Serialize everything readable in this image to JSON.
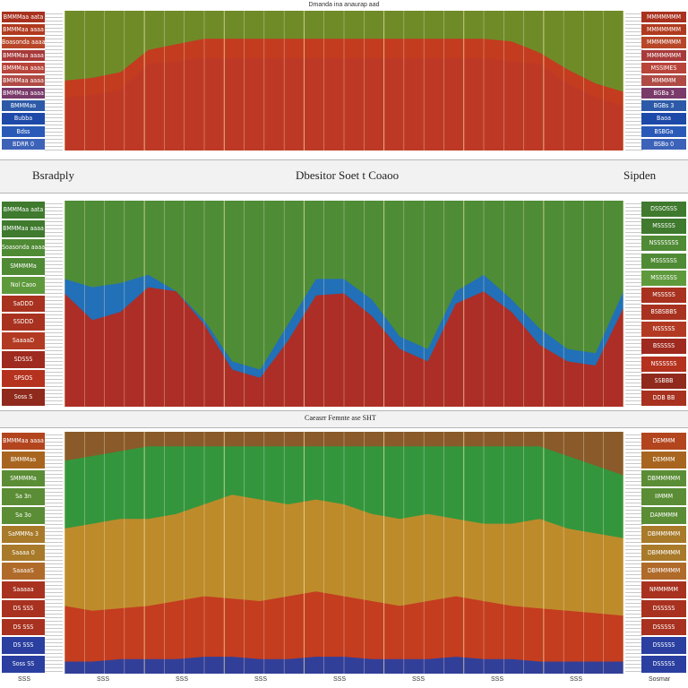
{
  "header": {
    "top_caption": "Dmanda ina anaurap aad"
  },
  "separator1": {
    "left": "Bsradply",
    "center": "Dbesitor Soet t Coaoo",
    "right": "Sipden"
  },
  "separator2": {
    "center": "Caeasrr Femnte ase  SHT"
  },
  "panels": [
    {
      "name": "panel-top",
      "left_labels": [
        "BMMMaa aata",
        "BMMMaa aaaa",
        "Boasonda aaaa",
        "BMMMaa aaaa",
        "BMMMaa aaaa",
        "BMMMaa aaaa",
        "BMMMaa aaaa",
        "BMMMaa",
        "Bubba",
        "Bdss",
        "BDRR 0"
      ],
      "right_labels": [
        "MMMMMMM",
        "MMMMMMM",
        "MMMMMMM",
        "MMMMMMM",
        "MSSIMES",
        "MMMMM",
        "BGBa 3",
        "BGBs 3",
        "Baoa",
        "BSBGa",
        "BSBo 0"
      ]
    },
    {
      "name": "panel-middle",
      "left_labels": [
        "BMMMaa aata",
        "BMMMaa aaaa",
        "Soasonda aaaa",
        "SMMMMa",
        "Nol Caoo",
        "SaDDD",
        "SSDDD",
        "SaaaaD",
        "SDSSS",
        "SPSOS",
        "Soss S"
      ],
      "right_labels": [
        "DSSOSSS",
        "MSSSSS",
        "NSSSSSSS",
        "MSSSSSS",
        "MSSSSSS",
        "MSSSSS",
        "BSBSBBS",
        "NSSSSS",
        "BSSSSS",
        "NSSSSSS",
        "SSBBB",
        "DDB BB"
      ]
    },
    {
      "name": "panel-bottom",
      "left_labels": [
        "BMMMaa aaaa",
        "BMMMaa",
        "SMMMMa",
        "Sa 3n",
        "Sa 3o",
        "SaMMMa 3",
        "Saaaa 0",
        "SaaaaS",
        "Saaaaa",
        "DS SSS",
        "DS SSS",
        "DS SSS",
        "Soss SS"
      ],
      "right_labels": [
        "DEMMM",
        "DEMMM",
        "DBMMMMM",
        "IIMMM",
        "DAMMMM",
        "DBMMMMM",
        "DBMMMMM",
        "DBMMMMM",
        "NMMMMM",
        "DSSSSS",
        "DSSSSS",
        "DSSSSS",
        "DSSSSS"
      ]
    }
  ],
  "bottom_ticks": [
    "SSS",
    "SSS",
    "SSS",
    "SSS",
    "SSS",
    "SSS",
    "SSS",
    "SSS",
    "Sosmar"
  ],
  "chart_data": [
    {
      "type": "area",
      "title": "Dmanda ina anaurap aad",
      "series": [
        {
          "color": "#1d49a8",
          "values": [
            0.38,
            0.4,
            0.43,
            0.62,
            0.64,
            0.66,
            0.66,
            0.66,
            0.66,
            0.66,
            0.66,
            0.66,
            0.66,
            0.66,
            0.66,
            0.66,
            0.64,
            0.62,
            0.48,
            0.38,
            0.32
          ]
        },
        {
          "color": "#c7381f",
          "values": [
            0.5,
            0.52,
            0.56,
            0.72,
            0.76,
            0.8,
            0.8,
            0.8,
            0.8,
            0.8,
            0.8,
            0.8,
            0.8,
            0.8,
            0.8,
            0.8,
            0.78,
            0.7,
            0.58,
            0.48,
            0.42
          ]
        }
      ],
      "background": "#6f8b28"
    },
    {
      "type": "area",
      "title": "Dbesitor Soet t Coaoo",
      "series": [
        {
          "color": "#1f6fc0",
          "values": [
            0.62,
            0.58,
            0.6,
            0.64,
            0.56,
            0.42,
            0.22,
            0.18,
            0.4,
            0.62,
            0.62,
            0.52,
            0.34,
            0.28,
            0.56,
            0.64,
            0.52,
            0.38,
            0.28,
            0.26,
            0.56
          ]
        },
        {
          "color": "#b42a1e",
          "values": [
            0.55,
            0.42,
            0.46,
            0.58,
            0.56,
            0.4,
            0.18,
            0.14,
            0.32,
            0.54,
            0.55,
            0.44,
            0.28,
            0.22,
            0.5,
            0.56,
            0.46,
            0.3,
            0.22,
            0.2,
            0.48
          ]
        }
      ],
      "background": "#4f8c36"
    },
    {
      "type": "area",
      "title": "Caeasrr Femnte ase  SHT",
      "series": [
        {
          "color": "#2e9a3e",
          "values": [
            0.88,
            0.9,
            0.92,
            0.94,
            0.94,
            0.94,
            0.94,
            0.94,
            0.94,
            0.94,
            0.94,
            0.94,
            0.94,
            0.94,
            0.94,
            0.94,
            0.94,
            0.94,
            0.9,
            0.86,
            0.82
          ]
        },
        {
          "color": "#c68a2a",
          "values": [
            0.6,
            0.62,
            0.64,
            0.64,
            0.66,
            0.7,
            0.74,
            0.72,
            0.7,
            0.72,
            0.7,
            0.66,
            0.64,
            0.66,
            0.64,
            0.62,
            0.62,
            0.64,
            0.6,
            0.58,
            0.56
          ]
        },
        {
          "color": "#c4391f",
          "values": [
            0.28,
            0.26,
            0.27,
            0.28,
            0.3,
            0.32,
            0.31,
            0.3,
            0.32,
            0.34,
            0.32,
            0.3,
            0.28,
            0.3,
            0.32,
            0.3,
            0.28,
            0.27,
            0.26,
            0.25,
            0.24
          ]
        },
        {
          "color": "#2a3fa0",
          "values": [
            0.05,
            0.05,
            0.06,
            0.06,
            0.06,
            0.07,
            0.07,
            0.06,
            0.06,
            0.07,
            0.07,
            0.06,
            0.06,
            0.06,
            0.07,
            0.06,
            0.06,
            0.05,
            0.05,
            0.05,
            0.05
          ]
        }
      ],
      "background": "#8a5a2a"
    }
  ]
}
